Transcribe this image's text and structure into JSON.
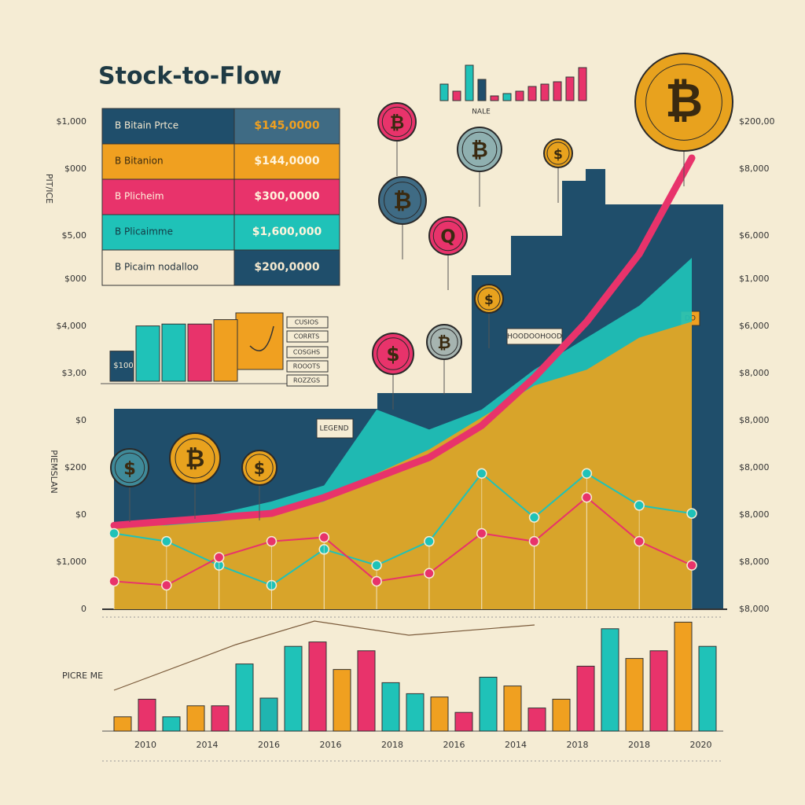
{
  "title": "Stock-to-Flow",
  "legend": [
    {
      "label": "B Bitain Prtce",
      "value": "$145,0000",
      "color": "#1f4e6b",
      "value_color": "#3f6b84",
      "text": "#f5e9cf",
      "value_text": "#f0a020"
    },
    {
      "label": "B Bitanion",
      "value": "$144,0000",
      "color": "#f0a020",
      "value_color": "#f0a020",
      "text": "#3a2a10",
      "value_text": "#fff4dc"
    },
    {
      "label": "B Plicheim",
      "value": "$300,0000",
      "color": "#e8336b",
      "value_color": "#e8336b",
      "text": "#fff4dc",
      "value_text": "#fff4dc"
    },
    {
      "label": "B Plicaimme",
      "value": "$1,600,000",
      "color": "#1fc2b8",
      "value_color": "#1fc2b8",
      "text": "#143a44",
      "value_text": "#fff4dc"
    },
    {
      "label": "B Picaim nodalloo",
      "value": "$200,0000",
      "color": "#f5e9cf",
      "value_color": "#1f4e6b",
      "text": "#1f2f3a",
      "value_text": "#f5e9cf"
    }
  ],
  "y_labels_left": [
    "$1,000",
    "$000",
    "$5,00",
    "$000",
    "$4,000",
    "$3,00",
    "$0",
    "$200",
    "$0",
    "$1,000",
    "0"
  ],
  "y_labels_right": [
    "$200,00",
    "$8,000",
    "$6,000",
    "$1,000",
    "$6,000",
    "$8,000",
    "$8,000",
    "$8,000",
    "$8,000",
    "$8,000",
    "$8,000"
  ],
  "axis_label_top_left": "PIT/ICE",
  "axis_label_left": "PIEMSLAN",
  "axis_label_bottom": "PICRE ME",
  "x_labels": [
    "2010",
    "2014",
    "2016",
    "2016",
    "2018",
    "2016",
    "2014",
    "2018",
    "2018",
    "2020"
  ],
  "annotations": [
    "NALE",
    "DO",
    "HOODOOHOOD",
    "LEGEND",
    "CUSIOS",
    "CORRTS",
    "COSGHS",
    "ROOOTS",
    "ROZZGS"
  ],
  "coins": [
    "₿",
    "₿",
    "₿",
    "₿",
    "Q",
    "$",
    "₿",
    "$",
    "$",
    "$",
    "₿",
    "$"
  ],
  "chart_data": [
    {
      "type": "area",
      "categories": [
        null,
        null,
        null,
        null,
        null,
        null,
        null,
        null,
        null,
        null,
        null,
        null
      ],
      "ylim": [
        0,
        125
      ],
      "series": [
        {
          "name": null,
          "style": "area",
          "color": "#1fc2b8",
          "values": [
            21,
            22,
            24,
            27,
            31,
            50,
            45,
            50,
            60,
            68,
            76,
            88
          ]
        },
        {
          "name": null,
          "style": "area",
          "color": "#e8a21e",
          "values": [
            21,
            21,
            22,
            24,
            27,
            34,
            40,
            48,
            56,
            60,
            68,
            72
          ]
        },
        {
          "name": null,
          "style": "band",
          "color": "#e8336b",
          "values": [
            21,
            22,
            23,
            24,
            28,
            33,
            38,
            46,
            58,
            72,
            89,
            113
          ]
        },
        {
          "name": null,
          "style": "markers",
          "color": "#1fc2b8",
          "values": [
            19,
            17,
            11,
            6,
            15,
            11,
            17,
            34,
            23,
            34,
            26,
            24
          ]
        },
        {
          "name": null,
          "style": "markers",
          "color": "#e8336b",
          "values": [
            7,
            6,
            13,
            17,
            18,
            7,
            9,
            19,
            17,
            28,
            17,
            11
          ]
        }
      ]
    },
    {
      "type": "bar",
      "ylim": [
        0,
        100
      ],
      "values": [
        13,
        29,
        13,
        23,
        23,
        61,
        30,
        77,
        81,
        56,
        73,
        44,
        34,
        31,
        17,
        49,
        41,
        21,
        29,
        59,
        93,
        66,
        73,
        99,
        77
      ],
      "colors": [
        "#f0a020",
        "#e8336b",
        "#1fc2b8",
        "#f0a020",
        "#e8336b",
        "#1fc2b8",
        "#1fb5b0",
        "#1fc2b8",
        "#e8336b",
        "#f0a020",
        "#e8336b",
        "#1fc2b8",
        "#1fc2b8",
        "#f0a020",
        "#e8336b",
        "#1fc2b8",
        "#f0a020",
        "#e8336b",
        "#f0a020",
        "#e8336b",
        "#1fc2b8",
        "#f0a020",
        "#e8336b",
        "#f0a020",
        "#1fc2b8"
      ]
    },
    {
      "type": "bar",
      "ylim": [
        0,
        100
      ],
      "values": [
        35,
        20,
        75,
        45,
        10,
        15,
        20,
        30,
        35,
        40,
        50,
        70
      ],
      "colors": [
        "#1fc2b8",
        "#e8336b",
        "#1fc2b8",
        "#1f4e6b",
        "#e8336b",
        "#1fc2b8",
        "#e8336b",
        "#e8336b",
        "#e8336b",
        "#e8336b",
        "#e8336b",
        "#e8336b"
      ]
    },
    {
      "type": "bar",
      "ylim": [
        0,
        100
      ],
      "values": [
        48,
        88,
        91,
        91,
        98
      ],
      "value_label": "$100",
      "colors": [
        "#1f4e6b",
        "#1fc2b8",
        "#1fc2b8",
        "#e8336b",
        "#f0a020"
      ]
    }
  ]
}
